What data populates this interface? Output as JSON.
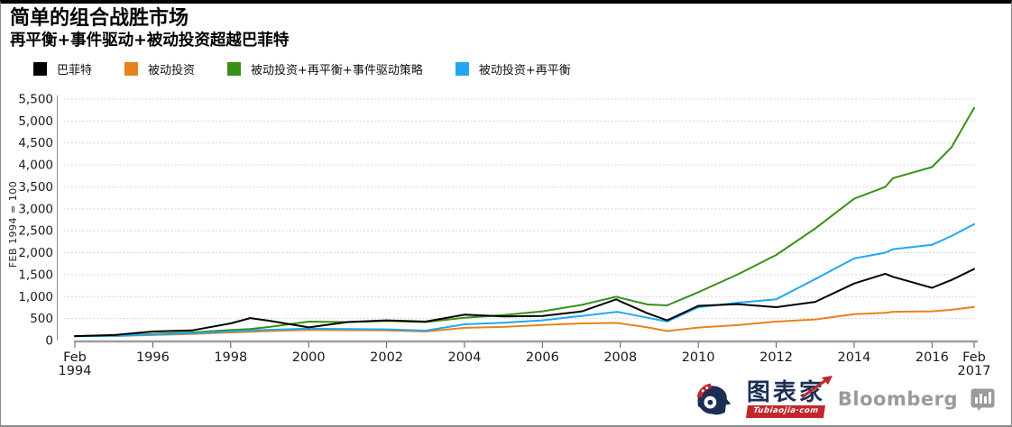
{
  "chart_data": {
    "type": "line",
    "title": "简单的组合战胜市场",
    "subtitle": "再平衡+事件驱动+被动投资超越巴菲特",
    "ylabel": "FEB 1994 = 100",
    "xlabel": "",
    "xlim": [
      1994,
      2017.08
    ],
    "ylim": [
      0,
      5500
    ],
    "ytick_step": 500,
    "grid": true,
    "legend_position": "top",
    "y_tick_labels": [
      "0",
      "500",
      "1,000",
      "1,500",
      "2,000",
      "2,500",
      "3,000",
      "3,500",
      "4,000",
      "4,500",
      "5,000",
      "5,500"
    ],
    "x_ticks": [
      {
        "pos": 1994,
        "lines": [
          "Feb",
          "1994"
        ]
      },
      {
        "pos": 1996,
        "lines": [
          "1996"
        ]
      },
      {
        "pos": 1998,
        "lines": [
          "1998"
        ]
      },
      {
        "pos": 2000,
        "lines": [
          "2000"
        ]
      },
      {
        "pos": 2002,
        "lines": [
          "2002"
        ]
      },
      {
        "pos": 2004,
        "lines": [
          "2004"
        ]
      },
      {
        "pos": 2006,
        "lines": [
          "2006"
        ]
      },
      {
        "pos": 2008,
        "lines": [
          "2008"
        ]
      },
      {
        "pos": 2010,
        "lines": [
          "2010"
        ]
      },
      {
        "pos": 2012,
        "lines": [
          "2012"
        ]
      },
      {
        "pos": 2014,
        "lines": [
          "2014"
        ]
      },
      {
        "pos": 2016,
        "lines": [
          "2016"
        ]
      },
      {
        "pos": 2017.08,
        "lines": [
          "Feb",
          "2017"
        ]
      }
    ],
    "x": [
      1994,
      1995,
      1996,
      1997,
      1998,
      1998.5,
      1999,
      2000,
      2001,
      2002,
      2003,
      2004,
      2005,
      2006,
      2007,
      2007.9,
      2008,
      2008.7,
      2009.2,
      2010,
      2011,
      2012,
      2013,
      2014,
      2014.8,
      2015,
      2016,
      2016.5,
      2017.08
    ],
    "series": [
      {
        "name": "巴菲特",
        "color": "#000000",
        "values": [
          100,
          125,
          205,
          230,
          390,
          510,
          450,
          300,
          420,
          460,
          430,
          590,
          550,
          560,
          660,
          940,
          890,
          620,
          460,
          790,
          830,
          760,
          880,
          1300,
          1520,
          1450,
          1200,
          1380,
          1630
        ]
      },
      {
        "name": "被动投资",
        "color": "#e8821c",
        "values": [
          100,
          102,
          125,
          150,
          185,
          200,
          215,
          240,
          235,
          230,
          205,
          290,
          310,
          355,
          390,
          400,
          390,
          300,
          215,
          295,
          350,
          430,
          480,
          600,
          630,
          655,
          665,
          700,
          765
        ]
      },
      {
        "name": "被动投资+再平衡+事件驱动策略",
        "color": "#3a8f16",
        "values": [
          100,
          110,
          150,
          185,
          240,
          260,
          310,
          430,
          420,
          445,
          420,
          520,
          580,
          665,
          810,
          1000,
          970,
          820,
          800,
          1100,
          1500,
          1950,
          2550,
          3230,
          3500,
          3700,
          3950,
          4400,
          5300
        ]
      },
      {
        "name": "被动投资+再平衡",
        "color": "#22a7f0",
        "values": [
          100,
          105,
          135,
          165,
          210,
          230,
          245,
          270,
          260,
          255,
          225,
          370,
          405,
          460,
          560,
          650,
          640,
          520,
          430,
          760,
          860,
          940,
          1400,
          1870,
          2000,
          2080,
          2180,
          2380,
          2650
        ]
      }
    ],
    "colors": {
      "grid": "#c9c9c9",
      "axis": "#9e9e9e",
      "tick_text": "#1a1a1a"
    }
  },
  "footer": {
    "tubiaojia_text": "图表家",
    "tubiaojia_domain": "Tubiaojia·com",
    "bloomberg": "Bloomberg"
  }
}
